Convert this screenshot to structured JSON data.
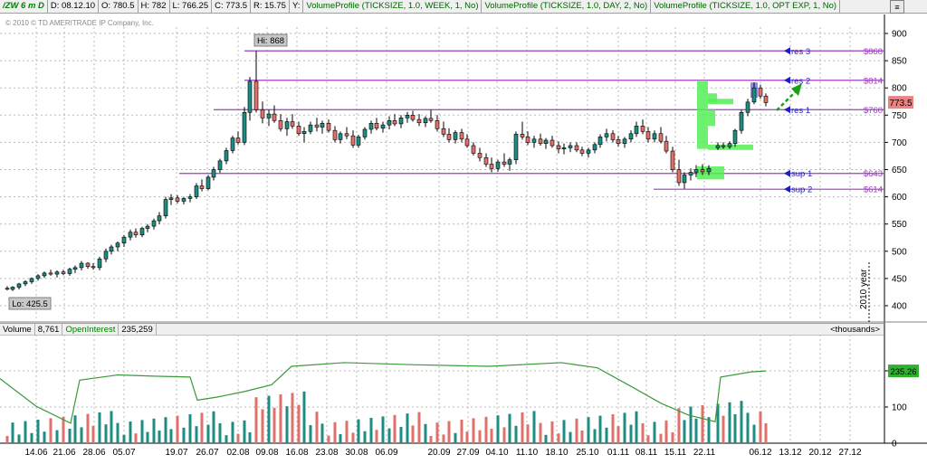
{
  "header": {
    "symbol": "/ZW 6 m D",
    "date": "D: 08.12.10",
    "open": "O: 780.5",
    "high": "H: 782",
    "low": "L: 766.25",
    "close": "C: 773.5",
    "range": "R: 15.75",
    "y_label": "Y:",
    "studies": [
      "VolumeProfile (TICKSIZE, 1.0, WEEK, 1, No)",
      "VolumeProfile (TICKSIZE, 1.0, DAY, 2, No)",
      "VolumeProfile (TICKSIZE, 1.0, OPT EXP, 1, No)"
    ],
    "menu_icon": "menu-lines-icon"
  },
  "copyright": "© 2010 © TD AMERITRADE IP Company, Inc.",
  "price_pane": {
    "y_ticks": [
      900,
      850,
      800,
      750,
      700,
      650,
      600,
      550,
      500,
      450,
      400
    ],
    "hi_label": "Hi: 868",
    "lo_label": "Lo: 425.5",
    "last_price": "773.5",
    "year_label": "2010 year",
    "levels": [
      {
        "name": "res 3",
        "price_label": "$868",
        "value": 868
      },
      {
        "name": "res 2",
        "price_label": "$814",
        "value": 814
      },
      {
        "name": "res 1",
        "price_label": "$760",
        "value": 760
      },
      {
        "name": "sup 1",
        "price_label": "$643",
        "value": 643
      },
      {
        "name": "sup 2",
        "price_label": "$614",
        "value": 614
      }
    ],
    "colors": {
      "up": "#1e8c82",
      "down": "#e0706a",
      "level": "#9b3fbf",
      "profile": "#55ee55",
      "arrow": "#1aa01a",
      "last_price_bg": "#f08080"
    }
  },
  "lower_pane": {
    "volume_label": "Volume",
    "volume_value": "8,761",
    "oi_label": "OpenInterest",
    "oi_value": "235,259",
    "units": "<thousands>",
    "y_ticks": [
      200,
      100,
      0
    ],
    "oi_last": "235.26"
  },
  "x_axis": {
    "labels": [
      "14.06",
      "21.06",
      "28.06",
      "05.07",
      "19.07",
      "26.07",
      "02.08",
      "09.08",
      "16.08",
      "23.08",
      "30.08",
      "06.09",
      "20.09",
      "27.09",
      "04.10",
      "11.10",
      "18.10",
      "25.10",
      "01.11",
      "08.11",
      "15.11",
      "22.11",
      "06.12",
      "13.12",
      "20.12",
      "27.12"
    ]
  }
}
